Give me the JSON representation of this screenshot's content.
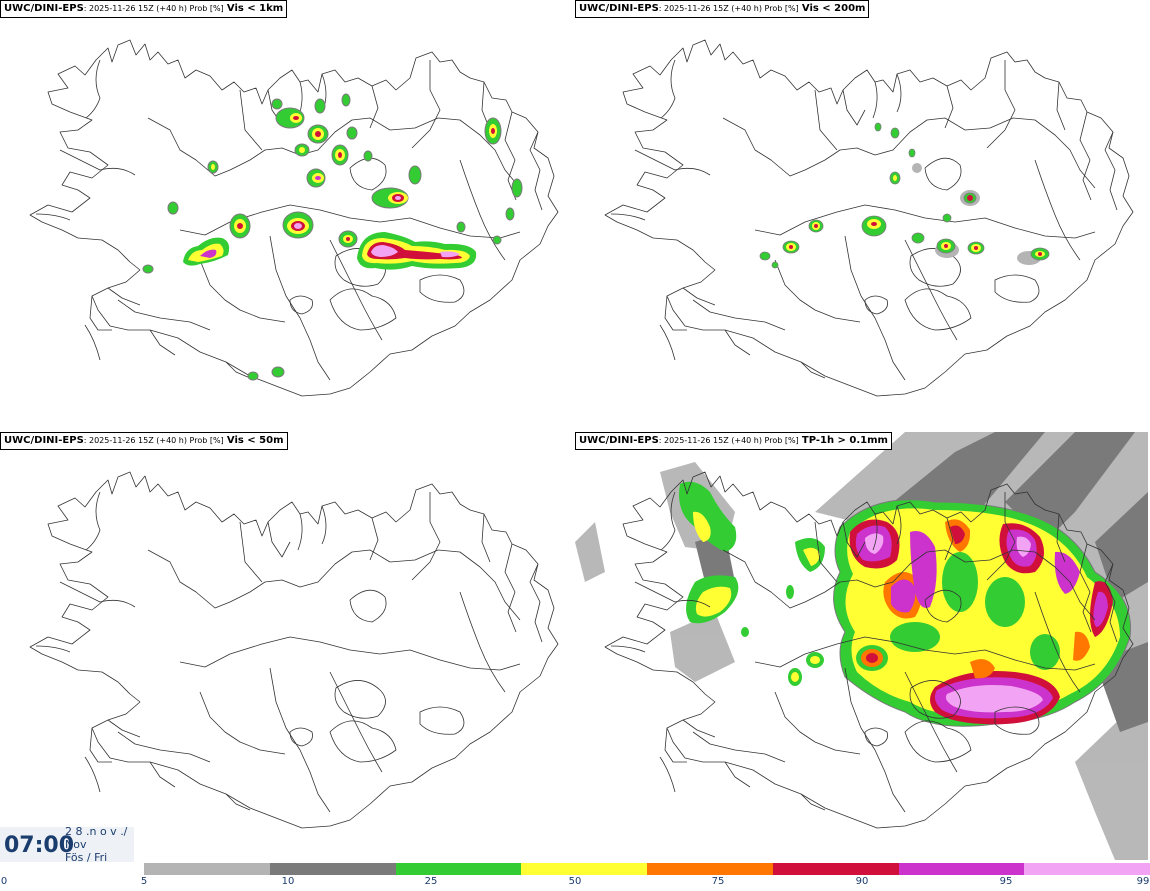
{
  "panels": [
    {
      "source": "UWC/DINI-EPS",
      "meta": ": 2025-11-26 15Z (+40 h) Prob [%]",
      "variable": "Vis < 1km"
    },
    {
      "source": "UWC/DINI-EPS",
      "meta": ": 2025-11-26 15Z (+40 h) Prob [%]",
      "variable": "Vis < 200m"
    },
    {
      "source": "UWC/DINI-EPS",
      "meta": ": 2025-11-26 15Z (+40 h) Prob [%]",
      "variable": "Vis < 50m"
    },
    {
      "source": "UWC/DINI-EPS",
      "meta": ": 2025-11-26 15Z (+40 h) Prob [%]",
      "variable": "TP-1h > 0.1mm"
    }
  ],
  "time": {
    "clock": "07:00",
    "line1": "2 8 .n o v ./",
    "line2": "Nov",
    "line3": "Fös / Fri"
  },
  "legend": {
    "colors": [
      "#b4b4b4",
      "#7a7a7a",
      "#33cc33",
      "#ffff33",
      "#ff7700",
      "#d0103a",
      "#cc33cc",
      "#f3a3f3"
    ],
    "ticks": [
      "0",
      "5",
      "10",
      "25",
      "50",
      "75",
      "90",
      "95",
      "99"
    ]
  }
}
